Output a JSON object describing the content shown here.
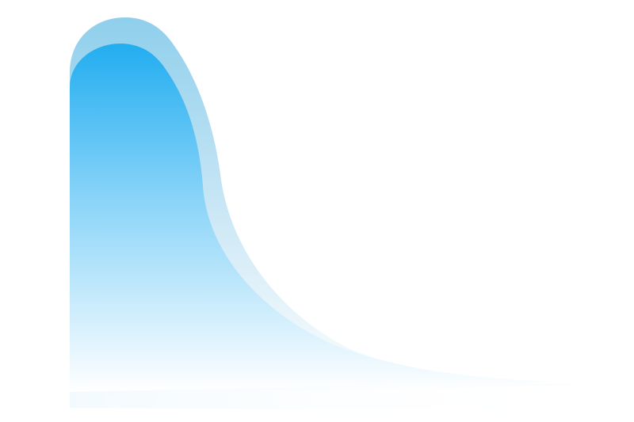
{
  "colors": {
    "background": "#ffffff",
    "back_wave_top": "#8fcfec",
    "back_wave_bottom": "#ffffff",
    "front_wave_top": "#22adf0",
    "front_wave_mid": "#8ad4f8",
    "front_wave_bottom": "#ffffff"
  }
}
